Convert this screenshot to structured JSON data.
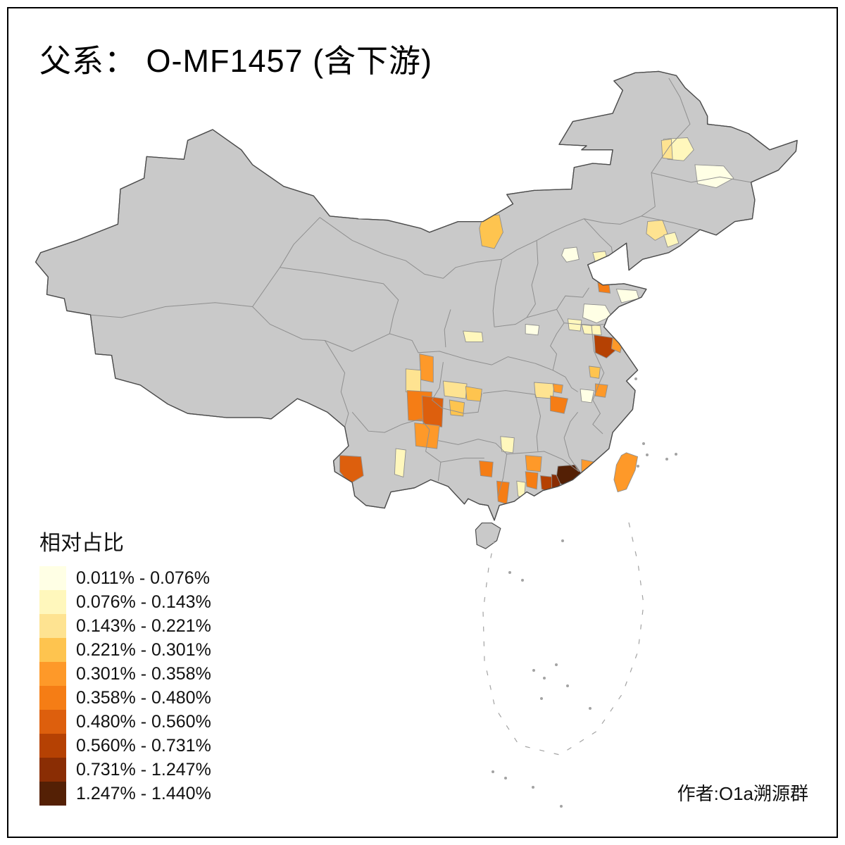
{
  "title": "父系： O-MF1457 (含下游)",
  "author_credit": "作者:O1a溯源群",
  "legend": {
    "title": "相对占比",
    "bins": [
      {
        "label": "0.011% - 0.076%",
        "color": "#FFFFE5"
      },
      {
        "label": "0.076% - 0.143%",
        "color": "#FFF7BC"
      },
      {
        "label": "0.143% - 0.221%",
        "color": "#FEE391"
      },
      {
        "label": "0.221% - 0.301%",
        "color": "#FEC44F"
      },
      {
        "label": "0.301% - 0.358%",
        "color": "#FE9929"
      },
      {
        "label": "0.358% - 0.480%",
        "color": "#F57D15"
      },
      {
        "label": "0.480% - 0.560%",
        "color": "#DD5F0D"
      },
      {
        "label": "0.560% - 0.731%",
        "color": "#B54103"
      },
      {
        "label": "0.731% - 1.247%",
        "color": "#8A2D04"
      },
      {
        "label": "1.247% - 1.440%",
        "color": "#542005"
      }
    ]
  },
  "map": {
    "land_color": "#C9C9C9",
    "coast_color": "#4D4D4D",
    "province_border_color": "#8F8F8F",
    "sea_dash_color": "#A3A3A3",
    "regions": [
      {
        "id": "heilongjiang-suihua",
        "bin": 2
      },
      {
        "id": "heilongjiang-qiqihar",
        "bin": 3
      },
      {
        "id": "heilongjiang-harbin",
        "bin": 1
      },
      {
        "id": "liaoning-shenyang",
        "bin": 3
      },
      {
        "id": "liaoning-dandong",
        "bin": 2
      },
      {
        "id": "neimenggu-baotou",
        "bin": 4
      },
      {
        "id": "beijing",
        "bin": 1
      },
      {
        "id": "hebei-qinhuangdao",
        "bin": 2
      },
      {
        "id": "shandong-weifang",
        "bin": 6
      },
      {
        "id": "shandong-peninsula",
        "bin": 1
      },
      {
        "id": "shandong-south",
        "bin": 1
      },
      {
        "id": "henan-east",
        "bin": 2
      },
      {
        "id": "jiangsu-north",
        "bin": 2
      },
      {
        "id": "jiangsu-central",
        "bin": 8
      },
      {
        "id": "jiangsu-coast",
        "bin": 5
      },
      {
        "id": "henan-central",
        "bin": 1
      },
      {
        "id": "shaanxi-south",
        "bin": 2
      },
      {
        "id": "anhui-wuhu",
        "bin": 4
      },
      {
        "id": "sichuan-nanchong",
        "bin": 5
      },
      {
        "id": "sichuan-chengdu",
        "bin": 3
      },
      {
        "id": "sichuan-leshan",
        "bin": 6
      },
      {
        "id": "sichuan-luzhou",
        "bin": 7
      },
      {
        "id": "yunnan-zhaotong",
        "bin": 5
      },
      {
        "id": "chongqing-west",
        "bin": 3
      },
      {
        "id": "guizhou-zunyi",
        "bin": 4
      },
      {
        "id": "hubei-enshi",
        "bin": 4
      },
      {
        "id": "hubei-east",
        "bin": 3
      },
      {
        "id": "hubei-huanggang",
        "bin": 5
      },
      {
        "id": "jiangxi-north",
        "bin": 6
      },
      {
        "id": "anhui-south-pale",
        "bin": 1
      },
      {
        "id": "anhui-huangshan",
        "bin": 5
      },
      {
        "id": "hunan-south",
        "bin": 2
      },
      {
        "id": "yunnan-lincang",
        "bin": 7
      },
      {
        "id": "yunnan-kunming",
        "bin": 2
      },
      {
        "id": "guangxi-central",
        "bin": 6
      },
      {
        "id": "guangxi-yulin",
        "bin": 6
      },
      {
        "id": "guangdong-qingyuan",
        "bin": 5
      },
      {
        "id": "guangdong-guangzhou",
        "bin": 6
      },
      {
        "id": "guangdong-yunfu",
        "bin": 2
      },
      {
        "id": "guangdong-huizhou",
        "bin": 8
      },
      {
        "id": "guangdong-shanwei",
        "bin": 9
      },
      {
        "id": "guangdong-chaoshan",
        "bin": 10
      },
      {
        "id": "fujian-xiamen",
        "bin": 5
      },
      {
        "id": "taiwan",
        "bin": 5
      }
    ]
  }
}
